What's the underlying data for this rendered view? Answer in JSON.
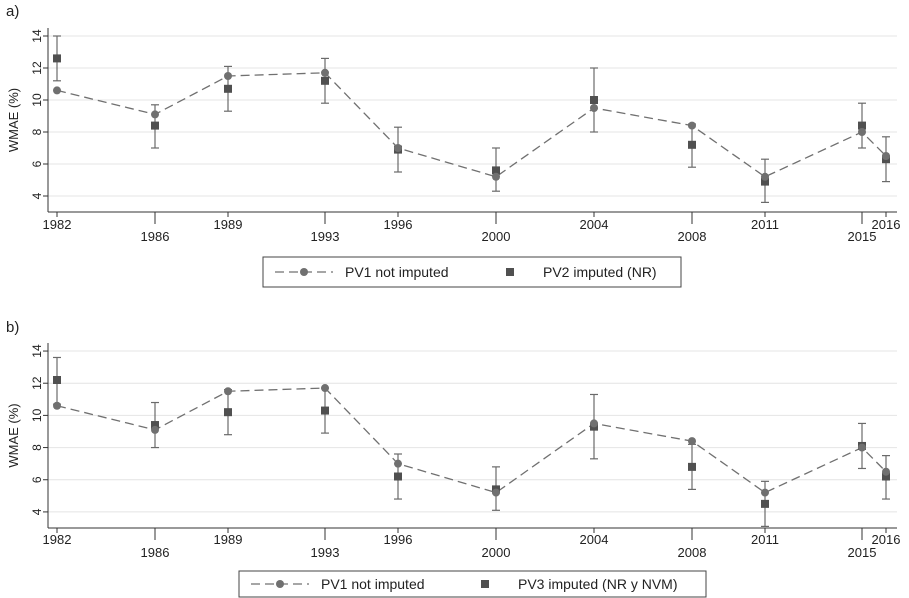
{
  "chart_data": [
    {
      "type": "line",
      "panel_label": "a)",
      "ylabel": "WMAE (%)",
      "ylim": [
        3,
        14.5
      ],
      "yticks": [
        4,
        6,
        8,
        10,
        12,
        14
      ],
      "x_categories": [
        "1982",
        "1986",
        "1989",
        "1993",
        "1996",
        "2000",
        "2004",
        "2008",
        "2011",
        "2015",
        "2016"
      ],
      "grid": true,
      "legend_position": "bottom",
      "series": [
        {
          "name": "PV1 not imputed",
          "style": "dashed line with circle markers",
          "color": "#707070",
          "values": [
            10.6,
            9.1,
            11.5,
            11.7,
            7.0,
            5.2,
            9.5,
            8.4,
            5.2,
            8.0,
            6.5
          ]
        },
        {
          "name": "PV2 imputed (NR)",
          "style": "square markers with error bars",
          "color": "#505050",
          "values": [
            12.6,
            8.4,
            10.7,
            11.2,
            6.9,
            5.6,
            10.0,
            7.2,
            4.9,
            8.4,
            6.3
          ],
          "lower": [
            11.2,
            7.0,
            9.3,
            9.8,
            5.5,
            4.3,
            8.0,
            5.8,
            3.6,
            7.0,
            4.9
          ],
          "upper": [
            14.0,
            9.7,
            12.1,
            12.6,
            8.3,
            7.0,
            12.0,
            8.5,
            6.3,
            9.8,
            7.7
          ]
        }
      ]
    },
    {
      "type": "line",
      "panel_label": "b)",
      "ylabel": "WMAE (%)",
      "ylim": [
        3,
        14.5
      ],
      "yticks": [
        4,
        6,
        8,
        10,
        12,
        14
      ],
      "x_categories": [
        "1982",
        "1986",
        "1989",
        "1993",
        "1996",
        "2000",
        "2004",
        "2008",
        "2011",
        "2015",
        "2016"
      ],
      "grid": true,
      "legend_position": "bottom",
      "series": [
        {
          "name": "PV1 not imputed",
          "style": "dashed line with circle markers",
          "color": "#707070",
          "values": [
            10.6,
            9.1,
            11.5,
            11.7,
            7.0,
            5.2,
            9.5,
            8.4,
            5.2,
            8.0,
            6.5
          ]
        },
        {
          "name": "PV3 imputed (NR y NVM)",
          "style": "square markers with error bars",
          "color": "#505050",
          "values": [
            12.2,
            9.4,
            10.2,
            10.3,
            6.2,
            5.4,
            9.3,
            6.8,
            4.5,
            8.1,
            6.2
          ],
          "lower": [
            10.7,
            8.0,
            8.8,
            8.9,
            4.8,
            4.1,
            7.3,
            5.4,
            3.1,
            6.7,
            4.8
          ],
          "upper": [
            13.6,
            10.8,
            11.6,
            11.7,
            7.6,
            6.8,
            11.3,
            8.2,
            5.9,
            9.5,
            7.5
          ]
        }
      ]
    }
  ]
}
